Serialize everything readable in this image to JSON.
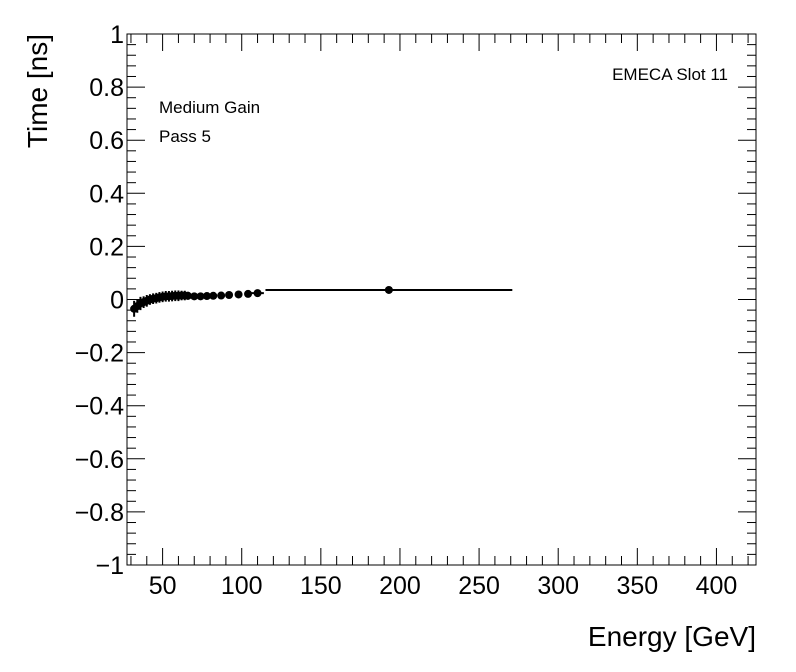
{
  "chart_data": {
    "type": "scatter",
    "title": "",
    "xlabel": "Energy [GeV]",
    "ylabel": "Time [ns]",
    "xlim": [
      27.5,
      425
    ],
    "ylim": [
      -1,
      1
    ],
    "x_ticks": [
      50,
      100,
      150,
      200,
      250,
      300,
      350,
      400
    ],
    "x_tick_labels": [
      "50",
      "100",
      "150",
      "200",
      "250",
      "300",
      "350",
      "400"
    ],
    "y_ticks": [
      -1,
      -0.8,
      -0.6,
      -0.4,
      -0.2,
      0,
      0.2,
      0.4,
      0.6,
      0.8,
      1
    ],
    "y_tick_labels": [
      "−1",
      "−0.8",
      "−0.6",
      "−0.4",
      "−0.2",
      "0",
      "0.2",
      "0.4",
      "0.6",
      "0.8",
      "1"
    ],
    "grid": false,
    "annotations": {
      "top_right": "EMECA Slot 11",
      "gain": "Medium Gain",
      "pass": "Pass 5"
    },
    "series": [
      {
        "marker": "circle",
        "color": "#000000",
        "points": [
          {
            "x": 32,
            "y": -0.035,
            "xerr": 1.0,
            "yerr": 0.03
          },
          {
            "x": 34,
            "y": -0.025,
            "xerr": 1.0,
            "yerr": 0.025
          },
          {
            "x": 36,
            "y": -0.015,
            "xerr": 1.0,
            "yerr": 0.025
          },
          {
            "x": 38,
            "y": -0.01,
            "xerr": 1.0,
            "yerr": 0.022
          },
          {
            "x": 40,
            "y": -0.005,
            "xerr": 1.0,
            "yerr": 0.022
          },
          {
            "x": 42,
            "y": 0.0,
            "xerr": 1.0,
            "yerr": 0.02
          },
          {
            "x": 44,
            "y": 0.003,
            "xerr": 1.0,
            "yerr": 0.02
          },
          {
            "x": 46,
            "y": 0.005,
            "xerr": 1.0,
            "yerr": 0.02
          },
          {
            "x": 48,
            "y": 0.008,
            "xerr": 1.0,
            "yerr": 0.02
          },
          {
            "x": 50,
            "y": 0.01,
            "xerr": 1.0,
            "yerr": 0.02
          },
          {
            "x": 52,
            "y": 0.012,
            "xerr": 1.0,
            "yerr": 0.02
          },
          {
            "x": 54,
            "y": 0.012,
            "xerr": 1.0,
            "yerr": 0.02
          },
          {
            "x": 56,
            "y": 0.013,
            "xerr": 1.0,
            "yerr": 0.02
          },
          {
            "x": 58,
            "y": 0.014,
            "xerr": 1.0,
            "yerr": 0.02
          },
          {
            "x": 60,
            "y": 0.014,
            "xerr": 1.0,
            "yerr": 0.02
          },
          {
            "x": 62,
            "y": 0.015,
            "xerr": 1.0,
            "yerr": 0.018
          },
          {
            "x": 64,
            "y": 0.015,
            "xerr": 1.0,
            "yerr": 0.018
          },
          {
            "x": 66,
            "y": 0.014,
            "xerr": 1.5,
            "yerr": 0.015
          },
          {
            "x": 70,
            "y": 0.012,
            "xerr": 1.5,
            "yerr": 0.012
          },
          {
            "x": 74,
            "y": 0.012,
            "xerr": 1.5,
            "yerr": 0.012
          },
          {
            "x": 78,
            "y": 0.013,
            "xerr": 1.5,
            "yerr": 0.01
          },
          {
            "x": 82,
            "y": 0.014,
            "xerr": 2.0,
            "yerr": 0.01
          },
          {
            "x": 87,
            "y": 0.015,
            "xerr": 2.0,
            "yerr": 0.008
          },
          {
            "x": 92,
            "y": 0.017,
            "xerr": 2.0,
            "yerr": 0.008
          },
          {
            "x": 98,
            "y": 0.019,
            "xerr": 2.0,
            "yerr": 0.006
          },
          {
            "x": 104,
            "y": 0.021,
            "xerr": 2.0,
            "yerr": 0.005
          },
          {
            "x": 110,
            "y": 0.024,
            "xerr": 4.0,
            "yerr": 0.004
          },
          {
            "x": 193,
            "y": 0.036,
            "xerr": 78.0,
            "yerr": 0.004
          }
        ]
      }
    ]
  }
}
